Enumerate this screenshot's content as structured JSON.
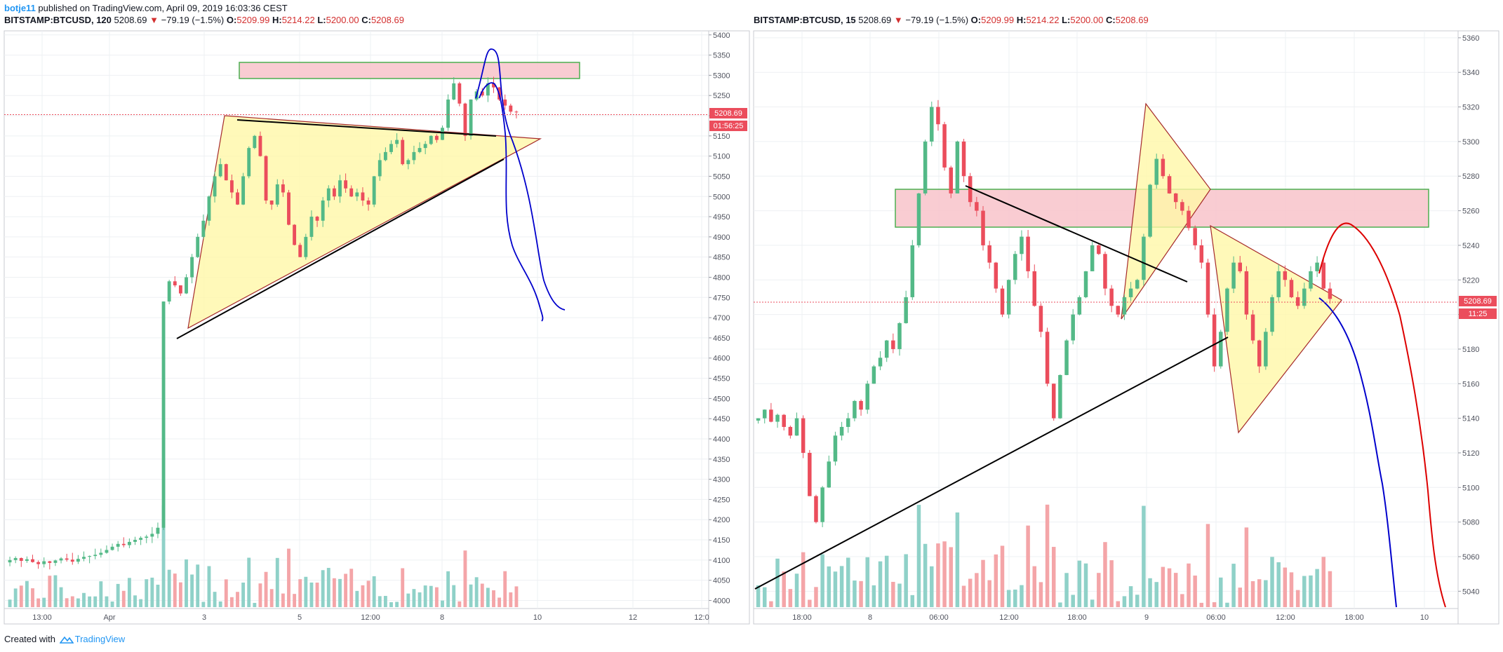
{
  "header": {
    "user": "botje11",
    "published": " published on TradingView.com, April 09, 2019 16:03:36 CEST"
  },
  "panels": [
    {
      "symbol": "BITSTAMP:BTCUSD, 120",
      "price": "5208.69",
      "change": "−79.19 (−1.5%)",
      "o_label": "O:",
      "o_val": "5209.99",
      "h_label": "H:",
      "h_val": "5214.22",
      "l_label": "L:",
      "l_val": "5200.00",
      "c_label": "C:",
      "c_val": "5208.69",
      "price_tag": "5208.69",
      "timer_tag": "01:56:25"
    },
    {
      "symbol": "BITSTAMP:BTCUSD, 15",
      "price": "5208.69",
      "change": "−79.19 (−1.5%)",
      "o_label": "O:",
      "o_val": "5209.99",
      "h_label": "H:",
      "h_val": "5214.22",
      "l_label": "L:",
      "l_val": "5200.00",
      "c_label": "C:",
      "c_val": "5208.69",
      "price_tag": "5208.69",
      "timer_tag": "11:25"
    }
  ],
  "footer": {
    "created": "Created with",
    "brand": "TradingView"
  },
  "colors": {
    "up": "#53b987",
    "down": "#eb4d5c",
    "vol_up": "#8fd1c8",
    "vol_down": "#f4a5a8",
    "grid": "#eef0f3",
    "axis": "#50535e",
    "zone_fill": "#f8c3ca",
    "zone_stroke": "#4caf50",
    "triangle_fill": "#fff7a8",
    "triangle_stroke": "#a52a2a",
    "blue_path": "#0000cc",
    "red_path": "#dd0000"
  },
  "chart_data": [
    {
      "type": "candlestick",
      "symbol": "BITSTAMP:BTCUSD",
      "interval": "120",
      "y_ticks": [
        4000,
        4050,
        4100,
        4150,
        4200,
        4250,
        4300,
        4350,
        4400,
        4450,
        4500,
        4550,
        4600,
        4650,
        4700,
        4750,
        4800,
        4850,
        4900,
        4950,
        5000,
        5050,
        5100,
        5150,
        5200,
        5250,
        5300,
        5350,
        5400
      ],
      "ylim": [
        3980,
        5410
      ],
      "x_ticks": [
        "13:00",
        "Apr",
        "3",
        "5",
        "12:00",
        "8",
        "10",
        "12",
        "12:0"
      ],
      "last_price": 5208.69,
      "resistance_zone": [
        5300,
        5345
      ],
      "candles_close": [
        4100,
        4105,
        4098,
        4102,
        4095,
        4090,
        4097,
        4093,
        4099,
        4104,
        4101,
        4096,
        4103,
        4108,
        4110,
        4113,
        4118,
        4125,
        4133,
        4140,
        4137,
        4145,
        4150,
        4155,
        4158,
        4165,
        4180,
        4740,
        4790,
        4780,
        4760,
        4800,
        4850,
        4900,
        4940,
        5000,
        5050,
        5080,
        5040,
        5010,
        4980,
        5050,
        5120,
        5150,
        5100,
        4990,
        4980,
        5030,
        5010,
        4930,
        4880,
        4850,
        4900,
        4950,
        4940,
        4990,
        5020,
        5000,
        5040,
        5020,
        5000,
        5010,
        4990,
        4980,
        5050,
        5090,
        5110,
        5130,
        5140,
        5080,
        5090,
        5110,
        5120,
        5130,
        5150,
        5140,
        5170,
        5240,
        5280,
        5230,
        5150,
        5240,
        5260,
        5250,
        5280,
        5270,
        5240,
        5225,
        5210,
        5209
      ]
    },
    {
      "type": "candlestick",
      "symbol": "BITSTAMP:BTCUSD",
      "interval": "15",
      "y_ticks": [
        5040,
        5060,
        5080,
        5100,
        5120,
        5140,
        5160,
        5180,
        5200,
        5220,
        5240,
        5260,
        5280,
        5300,
        5320,
        5340,
        5360
      ],
      "ylim": [
        5030,
        5364
      ],
      "x_ticks": [
        "18:00",
        "8",
        "06:00",
        "12:00",
        "18:00",
        "9",
        "06:00",
        "12:00",
        "18:00",
        "10"
      ],
      "last_price": 5208.69,
      "resistance_zone": [
        5250,
        5272
      ],
      "candles_close": [
        5140,
        5145,
        5138,
        5142,
        5135,
        5130,
        5140,
        5120,
        5095,
        5080,
        5100,
        5115,
        5130,
        5135,
        5140,
        5150,
        5145,
        5160,
        5170,
        5175,
        5185,
        5180,
        5195,
        5210,
        5240,
        5270,
        5300,
        5320,
        5310,
        5285,
        5270,
        5300,
        5280,
        5265,
        5260,
        5240,
        5230,
        5215,
        5200,
        5220,
        5235,
        5245,
        5225,
        5205,
        5190,
        5160,
        5140,
        5165,
        5185,
        5200,
        5210,
        5225,
        5240,
        5235,
        5215,
        5205,
        5200,
        5210,
        5215,
        5220,
        5245,
        5275,
        5290,
        5280,
        5270,
        5265,
        5260,
        5250,
        5240,
        5230,
        5200,
        5170,
        5190,
        5215,
        5230,
        5225,
        5200,
        5185,
        5170,
        5190,
        5210,
        5225,
        5220,
        5210,
        5205,
        5215,
        5225,
        5230,
        5215,
        5209
      ]
    }
  ]
}
